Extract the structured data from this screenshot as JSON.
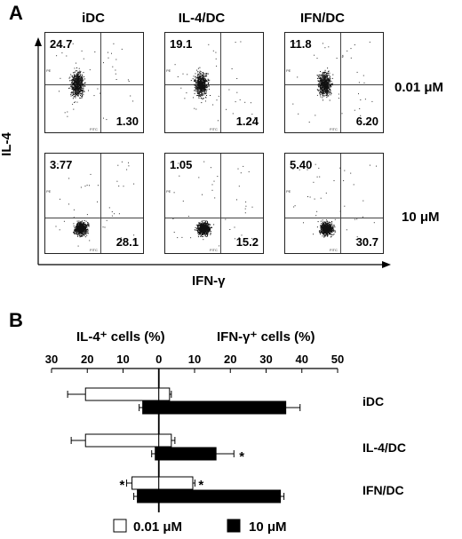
{
  "panel_a": {
    "label": "A",
    "col_labels": [
      "iDC",
      "IL-4/DC",
      "IFN/DC"
    ],
    "row_labels": [
      "0.01 μM",
      "10 μM"
    ],
    "y_axis_title": "IL-4",
    "x_axis_title": "IFN-γ",
    "quadrants": [
      [
        {
          "ul": "24.7",
          "lr": "1.30"
        },
        {
          "ul": "19.1",
          "lr": "1.24"
        },
        {
          "ul": "11.8",
          "lr": "6.20"
        }
      ],
      [
        {
          "ul": "3.77",
          "lr": "28.1"
        },
        {
          "ul": "1.05",
          "lr": "15.2"
        },
        {
          "ul": "5.40",
          "lr": "30.7"
        }
      ]
    ],
    "plot_axis_small": {
      "x": "FITC",
      "y": "PE"
    }
  },
  "panel_b": {
    "label": "B",
    "left_title": "IL-4⁺ cells (%)",
    "right_title": "IFN-γ⁺ cells (%)",
    "legend": [
      "0.01 μM",
      "10 μM"
    ]
  },
  "chart_data": {
    "type": "bar",
    "orientation": "horizontal-butterfly",
    "categories": [
      "iDC",
      "IL-4/DC",
      "IFN/DC"
    ],
    "ticks": [
      "30",
      "20",
      "10",
      "0",
      "10",
      "20",
      "30",
      "40",
      "50"
    ],
    "xlim": [
      -30,
      50
    ],
    "series": [
      {
        "name": "0.01 μM",
        "color": "#ffffff",
        "il4": [
          20.5,
          20.5,
          7.5
        ],
        "il4_err": [
          5,
          4,
          1.5
        ],
        "ifng": [
          3.0,
          3.5,
          9.5
        ],
        "ifng_err": [
          0.5,
          1,
          0.6
        ],
        "sig": [
          false,
          false,
          true
        ]
      },
      {
        "name": "10 μM",
        "color": "#000000",
        "il4": [
          4.5,
          1.0,
          6.0
        ],
        "il4_err": [
          1,
          1,
          1
        ],
        "ifng": [
          35.5,
          16.0,
          34.0
        ],
        "ifng_err": [
          4,
          5,
          1
        ],
        "sig": [
          false,
          true,
          false
        ]
      }
    ]
  }
}
